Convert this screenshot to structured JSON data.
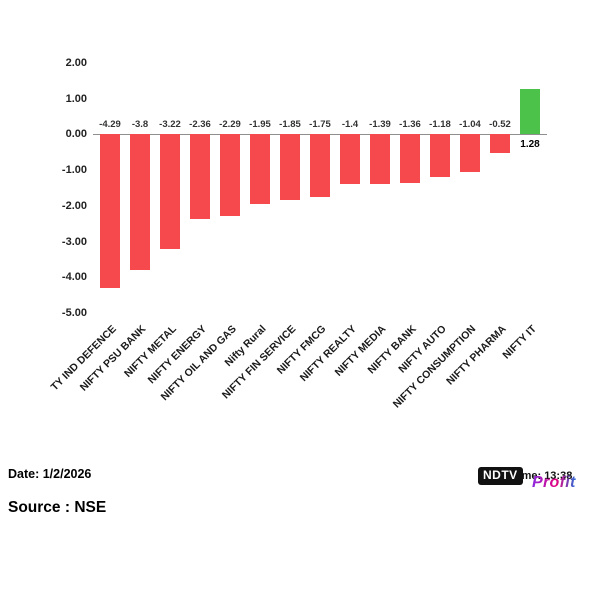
{
  "chart_data": {
    "type": "bar",
    "title": "",
    "xlabel": "",
    "ylabel": "",
    "categories": [
      "TY IND DEFENCE",
      "NIFTY PSU BANK",
      "NIFTY METAL",
      "NIFTY ENERGY",
      "NIFTY OIL AND GAS",
      "Nifty Rural",
      "NIFTY FIN SERVICE",
      "NIFTY FMCG",
      "NIFTY REALTY",
      "NIFTY MEDIA",
      "NIFTY BANK",
      "NIFTY AUTO",
      "NIFTY CONSUMPTION",
      "NIFTY PHARMA",
      "NIFTY IT"
    ],
    "values": [
      -4.29,
      -3.8,
      -3.22,
      -2.36,
      -2.29,
      -1.95,
      -1.85,
      -1.75,
      -1.4,
      -1.39,
      -1.36,
      -1.18,
      -1.04,
      -0.52,
      1.28
    ],
    "labels": [
      "-4.29",
      "-3.8",
      "-3.22",
      "-2.36",
      "-2.29",
      "-1.95",
      "-1.85",
      "-1.75",
      "-1.4",
      "-1.39",
      "-1.36",
      "-1.18",
      "-1.04",
      "-0.52",
      "1.28"
    ],
    "yticks": [
      "2.00",
      "1.00",
      "0.00",
      "-1.00",
      "-2.00",
      "-3.00",
      "-4.00",
      "-5.00"
    ],
    "ylim": [
      -5,
      2
    ],
    "grid": false,
    "legend": "none",
    "colors": {
      "negative": "#f5494d",
      "positive": "#4cc24a",
      "zero_line": "#8f8f8f"
    }
  },
  "footer": {
    "date": "Date: 1/2/2026",
    "time": "Time: 13:38",
    "source": "Source : NSE"
  },
  "logo": {
    "ndtv": "NDTV",
    "profit": "Profit"
  }
}
